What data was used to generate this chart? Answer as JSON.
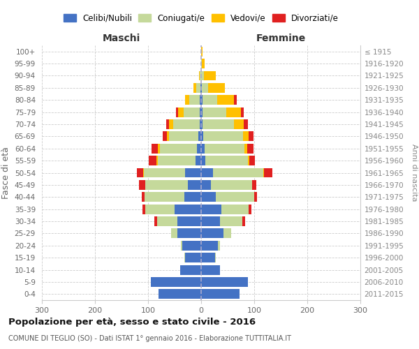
{
  "age_groups": [
    "100+",
    "95-99",
    "90-94",
    "85-89",
    "80-84",
    "75-79",
    "70-74",
    "65-69",
    "60-64",
    "55-59",
    "50-54",
    "45-49",
    "40-44",
    "35-39",
    "30-34",
    "25-29",
    "20-24",
    "15-19",
    "10-14",
    "5-9",
    "0-4"
  ],
  "birth_years": [
    "≤ 1915",
    "1916-1920",
    "1921-1925",
    "1926-1930",
    "1931-1935",
    "1936-1940",
    "1941-1945",
    "1946-1950",
    "1951-1955",
    "1956-1960",
    "1961-1965",
    "1966-1970",
    "1971-1975",
    "1976-1980",
    "1981-1985",
    "1986-1990",
    "1991-1995",
    "1996-2000",
    "2001-2005",
    "2006-2010",
    "2011-2015"
  ],
  "colors": {
    "celibi": "#4472c4",
    "coniugati": "#c5d99b",
    "vedovi": "#ffc000",
    "divorziati": "#e02020"
  },
  "male": {
    "celibi": [
      0,
      0,
      0,
      1,
      2,
      3,
      3,
      5,
      8,
      10,
      30,
      25,
      32,
      50,
      45,
      45,
      35,
      30,
      40,
      95,
      80
    ],
    "coniugati": [
      0,
      0,
      2,
      8,
      20,
      30,
      50,
      55,
      70,
      72,
      78,
      80,
      75,
      55,
      38,
      12,
      3,
      1,
      0,
      0,
      0
    ],
    "vedovi": [
      0,
      0,
      2,
      5,
      8,
      10,
      8,
      5,
      3,
      2,
      1,
      0,
      0,
      0,
      0,
      0,
      0,
      0,
      0,
      0,
      0
    ],
    "divorziati": [
      0,
      0,
      0,
      0,
      0,
      5,
      5,
      8,
      12,
      15,
      12,
      12,
      5,
      5,
      5,
      0,
      0,
      0,
      0,
      0,
      0
    ]
  },
  "female": {
    "celibi": [
      0,
      0,
      0,
      1,
      2,
      2,
      2,
      4,
      6,
      8,
      22,
      18,
      28,
      38,
      36,
      42,
      32,
      26,
      36,
      88,
      72
    ],
    "coniugati": [
      0,
      1,
      5,
      12,
      28,
      45,
      60,
      75,
      75,
      80,
      95,
      78,
      72,
      52,
      42,
      14,
      4,
      1,
      0,
      0,
      0
    ],
    "vedovi": [
      2,
      5,
      22,
      32,
      32,
      28,
      18,
      10,
      6,
      3,
      2,
      0,
      0,
      0,
      0,
      0,
      0,
      0,
      0,
      0,
      0
    ],
    "divorziati": [
      0,
      0,
      0,
      0,
      5,
      5,
      8,
      10,
      12,
      10,
      15,
      8,
      5,
      5,
      5,
      0,
      0,
      0,
      0,
      0,
      0
    ]
  },
  "xlim": 300,
  "title": "Popolazione per età, sesso e stato civile - 2016",
  "subtitle": "COMUNE DI TEGLIO (SO) - Dati ISTAT 1° gennaio 2016 - Elaborazione TUTTITALIA.IT",
  "xlabel_maschi": "Maschi",
  "xlabel_femmine": "Femmine",
  "ylabel": "Fasce di età",
  "ylabel_right": "Anni di nascita",
  "xticks": [
    -300,
    -200,
    -100,
    0,
    100,
    200,
    300
  ],
  "xticklabels": [
    "300",
    "200",
    "100",
    "0",
    "100",
    "200",
    "300"
  ],
  "bg_color": "#ffffff"
}
